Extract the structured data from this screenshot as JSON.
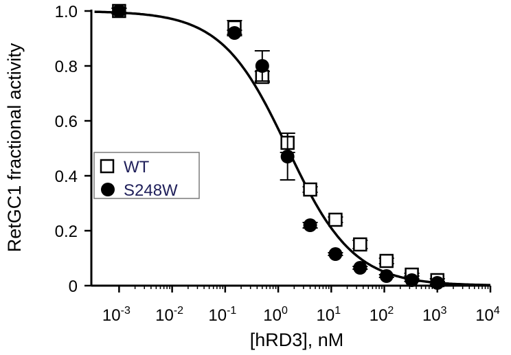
{
  "chart_data": {
    "type": "scatter",
    "xlabel": "[hRD3], nM",
    "ylabel": "RetGC1 fractional activity",
    "xscale": "log",
    "xlim": [
      0.0003,
      10000
    ],
    "ylim": [
      0,
      1.0
    ],
    "x_ticks": [
      {
        "base": "10",
        "exp": "-3"
      },
      {
        "base": "10",
        "exp": "-2"
      },
      {
        "base": "10",
        "exp": "-1"
      },
      {
        "base": "10",
        "exp": "0"
      },
      {
        "base": "10",
        "exp": "1"
      },
      {
        "base": "10",
        "exp": "2"
      },
      {
        "base": "10",
        "exp": "3"
      },
      {
        "base": "10",
        "exp": "4"
      }
    ],
    "y_ticks": [
      "0",
      "0.2",
      "0.4",
      "0.6",
      "0.8",
      "1.0"
    ],
    "y_tick_values": [
      0,
      0.2,
      0.4,
      0.6,
      0.8,
      1.0
    ],
    "grid": false,
    "legend_position": "left-middle",
    "series": [
      {
        "name": "WT",
        "marker": "open-square",
        "x": [
          0.001,
          0.15,
          0.5,
          1.5,
          4,
          12,
          35,
          110,
          330,
          1000
        ],
        "y": [
          1.0,
          0.94,
          0.76,
          0.52,
          0.35,
          0.24,
          0.15,
          0.09,
          0.04,
          0.02
        ],
        "err": [
          0.01,
          0.025,
          0.02,
          0.035,
          0.01,
          0.01,
          0.015,
          0.01,
          0.005,
          0.005
        ]
      },
      {
        "name": "S248W",
        "marker": "filled-circle",
        "x": [
          0.001,
          0.15,
          0.5,
          1.5,
          4,
          12,
          35,
          110,
          330,
          1000
        ],
        "y": [
          1.0,
          0.92,
          0.8,
          0.47,
          0.22,
          0.115,
          0.065,
          0.035,
          0.02,
          0.01
        ],
        "err": [
          0.01,
          0.01,
          0.055,
          0.085,
          0.01,
          0.005,
          0.005,
          0.005,
          0.005,
          0.005
        ]
      }
    ],
    "fit_curve": {
      "model": "hill",
      "ic50_nM": 1.5,
      "hill_coefficient": 0.7
    }
  }
}
